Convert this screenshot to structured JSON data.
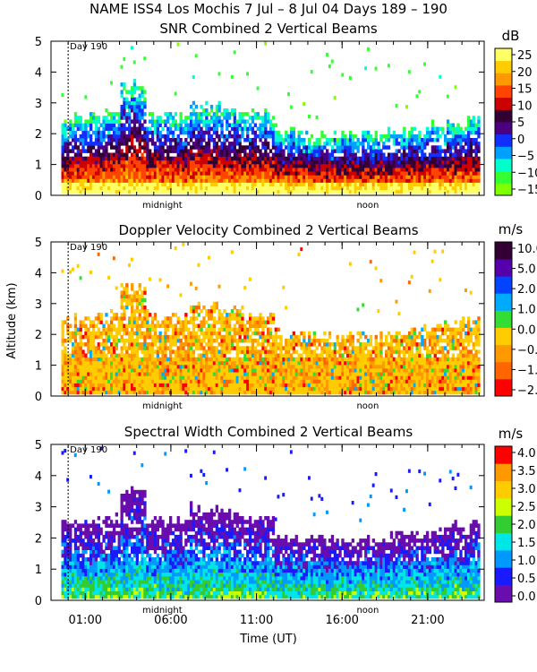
{
  "suptitle": "NAME ISS4 Los Mochis    7 Jul  –   8 Jul 04 Days 189 –  190",
  "xlabel": "Time (UT)",
  "ylabel": "Altitude (km)",
  "x_tick_labels": [
    "01:00",
    "06:00",
    "11:00",
    "16:00",
    "21:00"
  ],
  "x_ticks_hours": [
    1,
    6,
    11,
    16,
    21
  ],
  "x_range_hours": [
    -1,
    24.3
  ],
  "y_ticks": [
    0,
    1,
    2,
    3,
    4,
    5
  ],
  "day_marker": {
    "label": "Day 190",
    "hour": 0
  },
  "midnight_label": "midnight",
  "midnight_hour": 5.5,
  "noon_label": "noon",
  "noon_hour": 17.5,
  "colors": {
    "snr": [
      "#7fff00",
      "#33ff33",
      "#00ffcc",
      "#00a0ff",
      "#1030ff",
      "#4b0082",
      "#330033",
      "#cc0000",
      "#ff4400",
      "#ff9900",
      "#ffcc00",
      "#ffff66"
    ],
    "doppler": [
      "#ff0000",
      "#ff6600",
      "#ff9900",
      "#ffcc00",
      "#33dd33",
      "#00aaff",
      "#0044ff",
      "#5500aa",
      "#330033"
    ],
    "width": [
      "#6a0dad",
      "#1a1aff",
      "#0099ff",
      "#00e5e5",
      "#33cc33",
      "#ccff00",
      "#ffcc00",
      "#ff9900",
      "#ff0000"
    ]
  },
  "chart_data": [
    {
      "type": "heatmap",
      "title": "SNR Combined 2 Vertical Beams",
      "units": "dB",
      "xlabel": "",
      "ylabel": "",
      "ylim": [
        0,
        5
      ],
      "colorbar_labels": [
        "25",
        "20",
        "15",
        "10",
        "5",
        "0",
        "−5",
        "−10",
        "−15"
      ],
      "colorbar_range": [
        -17.5,
        27.5
      ]
    },
    {
      "type": "heatmap",
      "title": "Doppler Velocity Combined 2 Vertical Beams",
      "units": "m/s",
      "xlabel": "",
      "ylabel": "Altitude (km)",
      "ylim": [
        0,
        5
      ],
      "colorbar_labels": [
        "10.0",
        "5.0",
        "2.0",
        "1.0",
        "0.0",
        "−0.5",
        "−1.0",
        "−2.0"
      ],
      "colorbar_range": [
        -2.0,
        10.0
      ]
    },
    {
      "type": "heatmap",
      "title": "Spectral Width Combined 2 Vertical Beams",
      "units": "m/s",
      "xlabel": "Time (UT)",
      "ylabel": "",
      "ylim": [
        0,
        5
      ],
      "colorbar_labels": [
        "4.0",
        "3.5",
        "3.0",
        "2.5",
        "2.0",
        "1.5",
        "1.0",
        "0.5",
        "0.0"
      ],
      "colorbar_range": [
        0.0,
        4.0
      ]
    }
  ]
}
